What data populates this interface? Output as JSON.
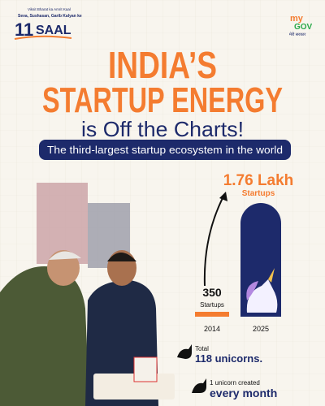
{
  "header": {
    "tagline_1": "Viksit Bharat ka Amrit Kaal",
    "tagline_2": "Seva, Sushasan, Garib Kalyan ke",
    "logo_number": "11",
    "logo_word": "SAAL",
    "mygov_1": "my",
    "mygov_2": "GOV",
    "mygov_3": "मेरी सरकार"
  },
  "title": {
    "line_1": "INDIA’S",
    "line_2": "STARTUP ENERGY",
    "line_3": "is Off the Charts!"
  },
  "banner": "The third-largest startup ecosystem in the world",
  "comparison": {
    "items": [
      {
        "year": "2014",
        "value": "350",
        "unit": "Startups"
      },
      {
        "year": "2025",
        "value": "1.76 Lakh",
        "unit": "Startups"
      }
    ]
  },
  "facts": [
    {
      "label": "Total",
      "value": "118 unicorns."
    },
    {
      "label": "1 unicorn created",
      "value": "every month"
    }
  ]
}
